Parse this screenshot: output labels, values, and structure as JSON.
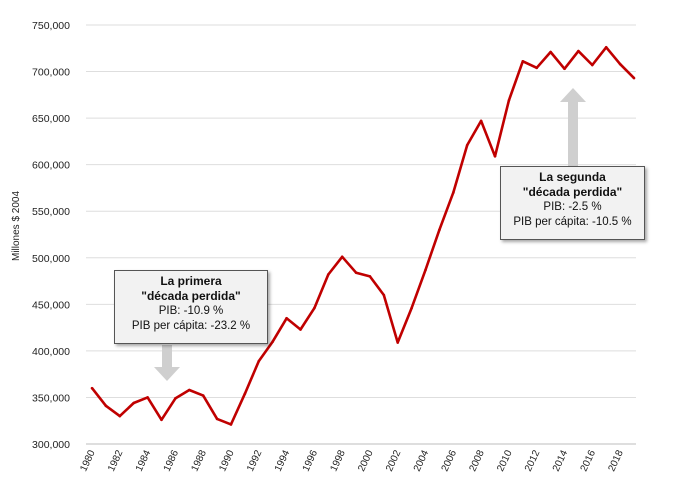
{
  "chart_data": {
    "type": "line",
    "title": "",
    "xlabel": "",
    "ylabel": "Millones $ 2004",
    "ylim": [
      300000,
      750000
    ],
    "yticks": [
      "300,000",
      "350,000",
      "400,000",
      "450,000",
      "500,000",
      "550,000",
      "600,000",
      "650,000",
      "700,000",
      "750,000"
    ],
    "xticks": [
      "1980",
      "1982",
      "1984",
      "1986",
      "1988",
      "1990",
      "1992",
      "1994",
      "1996",
      "1998",
      "2000",
      "2002",
      "2004",
      "2006",
      "2008",
      "2010",
      "2012",
      "2014",
      "2016",
      "2018"
    ],
    "series": [
      {
        "color": "#c00000",
        "x": [
          1980,
          1981,
          1982,
          1983,
          1984,
          1985,
          1986,
          1987,
          1988,
          1989,
          1990,
          1991,
          1992,
          1993,
          1994,
          1995,
          1996,
          1997,
          1998,
          1999,
          2000,
          2001,
          2002,
          2003,
          2004,
          2005,
          2006,
          2007,
          2008,
          2009,
          2010,
          2011,
          2012,
          2013,
          2014,
          2015,
          2016,
          2017,
          2018,
          2019
        ],
        "values": [
          360000,
          341000,
          330000,
          344000,
          350000,
          326000,
          349000,
          358000,
          352000,
          327000,
          321000,
          354000,
          389000,
          410000,
          435000,
          423000,
          446000,
          482000,
          501000,
          484000,
          480000,
          460000,
          409000,
          446000,
          487000,
          530000,
          570000,
          621000,
          647000,
          609000,
          669000,
          711000,
          704000,
          721000,
          703000,
          722000,
          707000,
          726000,
          708000,
          693000
        ]
      }
    ],
    "annotations": [
      {
        "title_line1": "La primera",
        "title_line2": "\"década perdida\"",
        "line3": "PIB: -10.9 %",
        "line4": "PIB per cápita: -23.2 %",
        "arrow": "down"
      },
      {
        "title_line1": "La segunda",
        "title_line2": "\"década perdida\"",
        "line3": "PIB: -2.5 %",
        "line4": "PIB per cápita: -10.5 %",
        "arrow": "up"
      }
    ],
    "grid": "horizontal",
    "legend": "none"
  }
}
